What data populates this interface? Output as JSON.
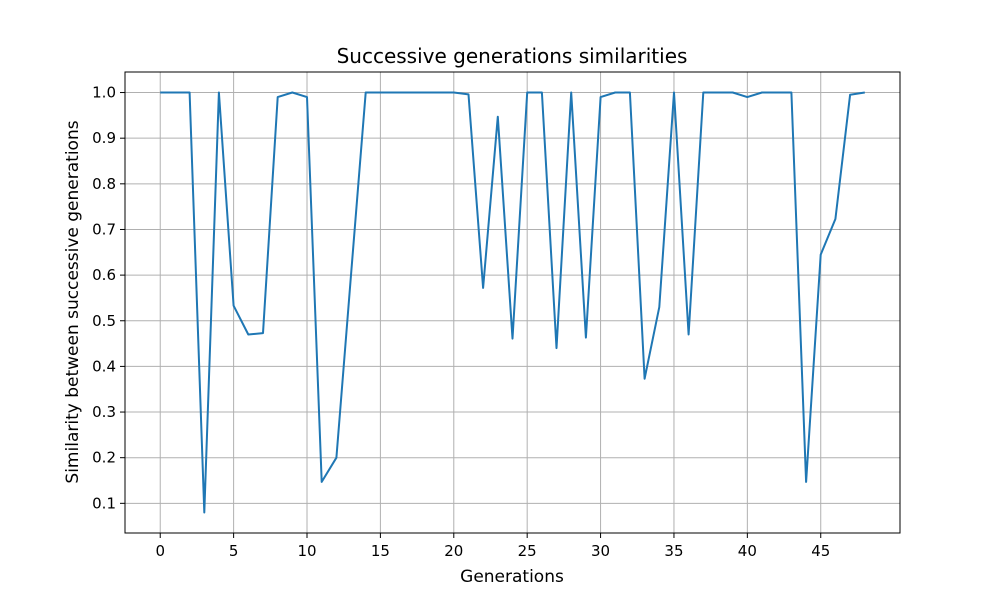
{
  "chart_data": {
    "type": "line",
    "title": "Successive generations similarities",
    "xlabel": "Generations",
    "ylabel": "Similarity between successive generations",
    "xlim": [
      -2.4,
      50.4
    ],
    "ylim": [
      0.035,
      1.045
    ],
    "xticks": [
      0,
      5,
      10,
      15,
      20,
      25,
      30,
      35,
      40,
      45
    ],
    "yticks": [
      0.1,
      0.2,
      0.3,
      0.4,
      0.5,
      0.6,
      0.7,
      0.8,
      0.9,
      1.0
    ],
    "ytick_labels": [
      "0.1",
      "0.2",
      "0.3",
      "0.4",
      "0.5",
      "0.6",
      "0.7",
      "0.8",
      "0.9",
      "1.0"
    ],
    "grid": true,
    "line_color": "#1f77b4",
    "series": [
      {
        "x": [
          0,
          1,
          2,
          3,
          4,
          5,
          6,
          7,
          8,
          9,
          10,
          11,
          12,
          13,
          14,
          15,
          16,
          17,
          18,
          19,
          20,
          21,
          22,
          23,
          24,
          25,
          26,
          27,
          28,
          29,
          30,
          31,
          32,
          33,
          34,
          35,
          36,
          37,
          38,
          39,
          40,
          41,
          42,
          43,
          44,
          45,
          46,
          47,
          48
        ],
        "values": [
          1.0,
          1.0,
          1.0,
          0.08,
          1.0,
          0.533,
          0.47,
          0.473,
          0.99,
          1.0,
          0.99,
          0.147,
          0.2,
          0.6,
          1.0,
          1.0,
          1.0,
          1.0,
          1.0,
          1.0,
          1.0,
          0.996,
          0.572,
          0.947,
          0.461,
          1.0,
          1.0,
          0.44,
          1.0,
          0.463,
          0.99,
          1.0,
          1.0,
          0.373,
          0.53,
          1.0,
          0.47,
          1.0,
          1.0,
          1.0,
          0.99,
          1.0,
          1.0,
          1.0,
          0.147,
          0.645,
          0.723,
          0.995,
          1.0
        ]
      }
    ]
  }
}
